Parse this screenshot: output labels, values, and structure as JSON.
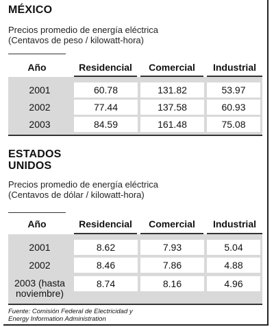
{
  "mexico": {
    "title": "MÉXICO",
    "subtitle_line1": "Precios promedio de energía eléctrica",
    "subtitle_line2": "(Centavos de peso / kilowatt-hora)",
    "columns": [
      "Año",
      "Residencial",
      "Comercial",
      "Industrial"
    ],
    "rows": [
      {
        "year": "2001",
        "residencial": "60.78",
        "comercial": "131.82",
        "industrial": "53.97"
      },
      {
        "year": "2002",
        "residencial": "77.44",
        "comercial": "137.58",
        "industrial": "60.93"
      },
      {
        "year": "2003",
        "residencial": "84.59",
        "comercial": "161.48",
        "industrial": "75.08"
      }
    ]
  },
  "usa": {
    "title_line1": "ESTADOS",
    "title_line2": "UNIDOS",
    "subtitle_line1": "Precios promedio de energía eléctrica",
    "subtitle_line2": "(Centavos de dólar / kilowatt-hora)",
    "columns": [
      "Año",
      "Residencial",
      "Comercial",
      "Industrial"
    ],
    "rows": [
      {
        "year": "2001",
        "residencial": "8.62",
        "comercial": "7.93",
        "industrial": "5.04"
      },
      {
        "year": "2002",
        "residencial": "8.46",
        "comercial": "7.86",
        "industrial": "4.88"
      },
      {
        "year_line1": "2003 (hasta",
        "year_line2": "noviembre)",
        "residencial": "8.74",
        "comercial": "8.16",
        "industrial": "4.96"
      }
    ]
  },
  "source_line1": "Fuente: Comisión Federal de Electricidad y",
  "source_line2": "Energy Information Administration"
}
